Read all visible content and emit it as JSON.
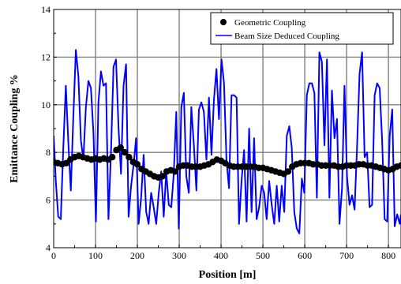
{
  "chart_data": {
    "type": "line",
    "xlabel": "Position   [m]",
    "ylabel": "Emittance   Coupling   %",
    "xlim": [
      0,
      830
    ],
    "ylim": [
      4,
      14
    ],
    "xticks": [
      "0",
      "100",
      "200",
      "300",
      "400",
      "500",
      "600",
      "700",
      "800"
    ],
    "yticks": [
      "4",
      "6",
      "8",
      "10",
      "12",
      "14"
    ],
    "grid": true,
    "legend": "top-right",
    "series": [
      {
        "name": "Geometric Coupling",
        "style": "markers",
        "color": "#000000",
        "x": [
          0,
          10,
          20,
          30,
          40,
          50,
          60,
          70,
          80,
          90,
          100,
          110,
          120,
          130,
          140,
          150,
          160,
          170,
          180,
          190,
          200,
          210,
          220,
          230,
          240,
          250,
          260,
          270,
          280,
          290,
          300,
          310,
          320,
          330,
          340,
          350,
          360,
          370,
          380,
          390,
          400,
          410,
          420,
          430,
          440,
          450,
          460,
          470,
          480,
          490,
          500,
          510,
          520,
          530,
          540,
          550,
          560,
          570,
          580,
          590,
          600,
          610,
          620,
          630,
          640,
          650,
          660,
          670,
          680,
          690,
          700,
          710,
          720,
          730,
          740,
          750,
          760,
          770,
          780,
          790,
          800,
          810,
          820,
          830
        ],
        "y": [
          7.6,
          7.55,
          7.5,
          7.55,
          7.7,
          7.8,
          7.85,
          7.8,
          7.75,
          7.7,
          7.75,
          7.7,
          7.75,
          7.7,
          7.8,
          8.1,
          8.2,
          8.0,
          7.8,
          7.6,
          7.5,
          7.3,
          7.2,
          7.1,
          7.0,
          6.95,
          7.0,
          7.2,
          7.25,
          7.2,
          7.4,
          7.45,
          7.45,
          7.4,
          7.4,
          7.4,
          7.45,
          7.5,
          7.6,
          7.7,
          7.65,
          7.55,
          7.45,
          7.4,
          7.4,
          7.4,
          7.4,
          7.4,
          7.4,
          7.35,
          7.35,
          7.3,
          7.25,
          7.2,
          7.15,
          7.1,
          7.2,
          7.4,
          7.5,
          7.55,
          7.55,
          7.55,
          7.5,
          7.5,
          7.45,
          7.45,
          7.45,
          7.45,
          7.4,
          7.4,
          7.45,
          7.45,
          7.45,
          7.5,
          7.5,
          7.45,
          7.45,
          7.4,
          7.35,
          7.3,
          7.25,
          7.3,
          7.4,
          7.45
        ]
      },
      {
        "name": "Beam Size Deduced Coupling",
        "style": "line",
        "color": "#0000ff",
        "x": [
          0,
          5,
          11,
          17,
          23,
          29,
          35,
          41,
          47,
          53,
          59,
          65,
          71,
          77,
          83,
          89,
          95,
          101,
          107,
          113,
          119,
          125,
          131,
          137,
          143,
          149,
          155,
          161,
          167,
          173,
          179,
          185,
          191,
          197,
          203,
          209,
          215,
          221,
          227,
          233,
          239,
          245,
          251,
          257,
          263,
          269,
          275,
          281,
          287,
          293,
          299,
          305,
          311,
          317,
          323,
          329,
          335,
          341,
          347,
          353,
          359,
          365,
          371,
          377,
          383,
          389,
          395,
          401,
          407,
          413,
          419,
          425,
          431,
          437,
          443,
          449,
          455,
          461,
          467,
          473,
          479,
          485,
          491,
          497,
          503,
          509,
          515,
          521,
          527,
          533,
          539,
          545,
          551,
          557,
          563,
          569,
          575,
          581,
          587,
          593,
          599,
          605,
          611,
          617,
          623,
          629,
          635,
          641,
          647,
          653,
          659,
          665,
          671,
          677,
          683,
          689,
          695,
          701,
          707,
          713,
          719,
          725,
          731,
          737,
          743,
          749,
          755,
          761,
          767,
          773,
          779,
          785,
          791,
          797,
          803,
          809,
          815,
          821,
          827,
          830
        ],
        "y": [
          8.7,
          6.8,
          5.3,
          5.2,
          8.2,
          10.8,
          8.4,
          6.4,
          9.5,
          12.3,
          11.2,
          8.5,
          7.7,
          9.9,
          11.0,
          10.7,
          8.8,
          5.1,
          10.1,
          11.4,
          10.8,
          10.9,
          5.2,
          8.0,
          11.6,
          11.9,
          9.0,
          7.1,
          10.8,
          11.7,
          5.3,
          6.6,
          7.5,
          8.6,
          5.0,
          6.1,
          7.9,
          5.5,
          5.0,
          6.3,
          5.7,
          5.0,
          6.3,
          7.2,
          5.3,
          7.2,
          5.8,
          5.7,
          7.1,
          9.7,
          4.8,
          9.9,
          10.5,
          7.0,
          6.3,
          9.9,
          8.3,
          6.4,
          9.8,
          10.1,
          9.7,
          7.7,
          10.3,
          7.9,
          10.2,
          11.5,
          9.4,
          11.9,
          10.9,
          7.7,
          6.5,
          10.4,
          10.4,
          10.3,
          5.0,
          6.8,
          8.1,
          5.1,
          9.0,
          5.5,
          8.6,
          5.2,
          5.7,
          6.6,
          6.3,
          5.2,
          6.8,
          5.8,
          5.0,
          6.6,
          5.1,
          6.6,
          5.5,
          8.7,
          9.1,
          8.2,
          5.5,
          4.8,
          4.6,
          6.9,
          6.3,
          10.4,
          10.9,
          10.9,
          10.5,
          6.1,
          12.2,
          11.8,
          8.3,
          11.9,
          6.1,
          10.6,
          8.6,
          9.4,
          5.0,
          6.5,
          10.8,
          7.0,
          5.8,
          6.2,
          5.6,
          8.2,
          11.3,
          12.2,
          7.8,
          8.0,
          5.7,
          5.8,
          10.4,
          10.9,
          10.7,
          8.5,
          5.2,
          5.1,
          8.7,
          9.8,
          4.9,
          5.4,
          5.0,
          5.4
        ]
      }
    ]
  }
}
